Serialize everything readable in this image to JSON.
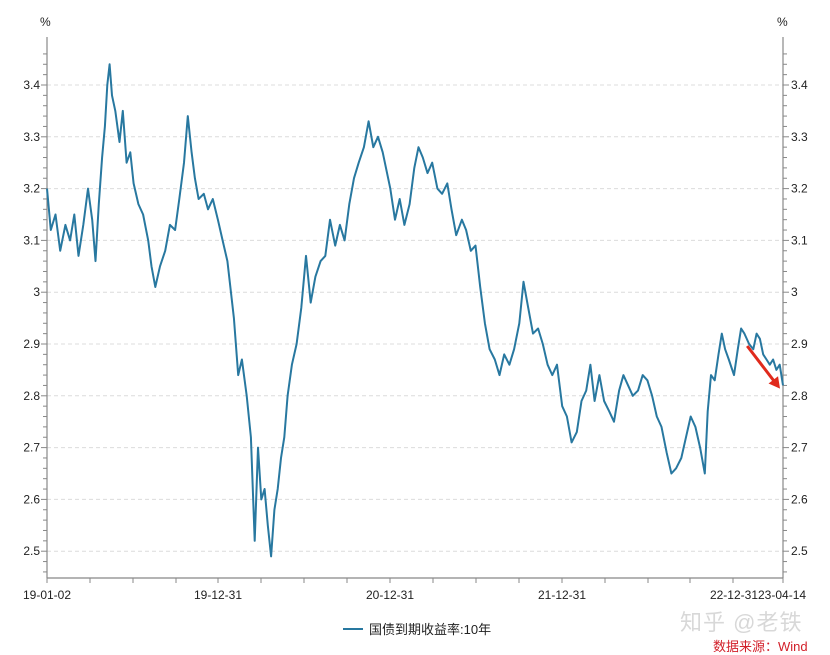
{
  "chart_data": {
    "type": "line",
    "title": "",
    "xlabel": "",
    "ylabel": "%",
    "ylabel_right": "%",
    "ylim": [
      2.45,
      3.48
    ],
    "yticks": [
      2.5,
      2.6,
      2.7,
      2.8,
      2.9,
      3,
      3.1,
      3.2,
      3.3,
      3.4
    ],
    "ytick_labels": [
      "2.5",
      "2.6",
      "2.7",
      "2.8",
      "2.9",
      "3",
      "3.1",
      "3.2",
      "3.3",
      "3.4"
    ],
    "xtick_labels": [
      "19-01-02",
      "19-12-31",
      "20-12-31",
      "21-12-31",
      "22-12-31",
      "23-04-14"
    ],
    "grid": true,
    "legend_position": "bottom-center",
    "series": [
      {
        "name": "国债到期收益率:10年",
        "color": "#2878a0",
        "points": [
          [
            "2019-01-02",
            3.2
          ],
          [
            "2019-01-10",
            3.12
          ],
          [
            "2019-01-20",
            3.15
          ],
          [
            "2019-01-30",
            3.08
          ],
          [
            "2019-02-10",
            3.13
          ],
          [
            "2019-02-20",
            3.1
          ],
          [
            "2019-03-01",
            3.15
          ],
          [
            "2019-03-10",
            3.07
          ],
          [
            "2019-03-20",
            3.13
          ],
          [
            "2019-03-30",
            3.2
          ],
          [
            "2019-04-08",
            3.14
          ],
          [
            "2019-04-15",
            3.06
          ],
          [
            "2019-04-22",
            3.17
          ],
          [
            "2019-04-29",
            3.26
          ],
          [
            "2019-05-05",
            3.32
          ],
          [
            "2019-05-10",
            3.4
          ],
          [
            "2019-05-15",
            3.44
          ],
          [
            "2019-05-20",
            3.38
          ],
          [
            "2019-05-27",
            3.35
          ],
          [
            "2019-06-05",
            3.29
          ],
          [
            "2019-06-12",
            3.35
          ],
          [
            "2019-06-20",
            3.25
          ],
          [
            "2019-06-28",
            3.27
          ],
          [
            "2019-07-05",
            3.21
          ],
          [
            "2019-07-15",
            3.17
          ],
          [
            "2019-07-25",
            3.15
          ],
          [
            "2019-08-05",
            3.1
          ],
          [
            "2019-08-12",
            3.05
          ],
          [
            "2019-08-20",
            3.01
          ],
          [
            "2019-08-30",
            3.05
          ],
          [
            "2019-09-10",
            3.08
          ],
          [
            "2019-09-20",
            3.13
          ],
          [
            "2019-10-01",
            3.12
          ],
          [
            "2019-10-10",
            3.18
          ],
          [
            "2019-10-20",
            3.25
          ],
          [
            "2019-10-28",
            3.34
          ],
          [
            "2019-11-05",
            3.27
          ],
          [
            "2019-11-12",
            3.22
          ],
          [
            "2019-11-20",
            3.18
          ],
          [
            "2019-12-01",
            3.19
          ],
          [
            "2019-12-10",
            3.16
          ],
          [
            "2019-12-20",
            3.18
          ],
          [
            "2019-12-31",
            3.14
          ],
          [
            "2020-01-10",
            3.1
          ],
          [
            "2020-01-20",
            3.06
          ],
          [
            "2020-02-03",
            2.95
          ],
          [
            "2020-02-12",
            2.84
          ],
          [
            "2020-02-20",
            2.87
          ],
          [
            "2020-03-01",
            2.8
          ],
          [
            "2020-03-10",
            2.72
          ],
          [
            "2020-03-18",
            2.52
          ],
          [
            "2020-03-25",
            2.7
          ],
          [
            "2020-04-01",
            2.6
          ],
          [
            "2020-04-08",
            2.62
          ],
          [
            "2020-04-15",
            2.55
          ],
          [
            "2020-04-22",
            2.49
          ],
          [
            "2020-04-29",
            2.58
          ],
          [
            "2020-05-06",
            2.62
          ],
          [
            "2020-05-13",
            2.68
          ],
          [
            "2020-05-20",
            2.72
          ],
          [
            "2020-05-27",
            2.8
          ],
          [
            "2020-06-05",
            2.86
          ],
          [
            "2020-06-15",
            2.9
          ],
          [
            "2020-06-25",
            2.97
          ],
          [
            "2020-07-05",
            3.07
          ],
          [
            "2020-07-15",
            2.98
          ],
          [
            "2020-07-25",
            3.03
          ],
          [
            "2020-08-05",
            3.06
          ],
          [
            "2020-08-15",
            3.07
          ],
          [
            "2020-08-25",
            3.14
          ],
          [
            "2020-09-05",
            3.09
          ],
          [
            "2020-09-15",
            3.13
          ],
          [
            "2020-09-25",
            3.1
          ],
          [
            "2020-10-05",
            3.17
          ],
          [
            "2020-10-15",
            3.22
          ],
          [
            "2020-10-25",
            3.25
          ],
          [
            "2020-11-05",
            3.28
          ],
          [
            "2020-11-15",
            3.33
          ],
          [
            "2020-11-25",
            3.28
          ],
          [
            "2020-12-05",
            3.3
          ],
          [
            "2020-12-15",
            3.27
          ],
          [
            "2020-12-31",
            3.2
          ],
          [
            "2021-01-10",
            3.14
          ],
          [
            "2021-01-20",
            3.18
          ],
          [
            "2021-01-30",
            3.13
          ],
          [
            "2021-02-10",
            3.17
          ],
          [
            "2021-02-20",
            3.24
          ],
          [
            "2021-03-01",
            3.28
          ],
          [
            "2021-03-10",
            3.26
          ],
          [
            "2021-03-20",
            3.23
          ],
          [
            "2021-03-30",
            3.25
          ],
          [
            "2021-04-10",
            3.2
          ],
          [
            "2021-04-20",
            3.19
          ],
          [
            "2021-05-01",
            3.21
          ],
          [
            "2021-05-10",
            3.16
          ],
          [
            "2021-05-20",
            3.11
          ],
          [
            "2021-06-01",
            3.14
          ],
          [
            "2021-06-10",
            3.12
          ],
          [
            "2021-06-20",
            3.08
          ],
          [
            "2021-06-30",
            3.09
          ],
          [
            "2021-07-10",
            3.01
          ],
          [
            "2021-07-20",
            2.94
          ],
          [
            "2021-07-30",
            2.89
          ],
          [
            "2021-08-10",
            2.87
          ],
          [
            "2021-08-20",
            2.84
          ],
          [
            "2021-08-30",
            2.88
          ],
          [
            "2021-09-10",
            2.86
          ],
          [
            "2021-09-20",
            2.89
          ],
          [
            "2021-10-01",
            2.94
          ],
          [
            "2021-10-10",
            3.02
          ],
          [
            "2021-10-20",
            2.97
          ],
          [
            "2021-10-30",
            2.92
          ],
          [
            "2021-11-10",
            2.93
          ],
          [
            "2021-11-20",
            2.9
          ],
          [
            "2021-11-30",
            2.86
          ],
          [
            "2021-12-10",
            2.84
          ],
          [
            "2021-12-20",
            2.86
          ],
          [
            "2021-12-31",
            2.78
          ],
          [
            "2022-01-10",
            2.76
          ],
          [
            "2022-01-20",
            2.71
          ],
          [
            "2022-01-31",
            2.73
          ],
          [
            "2022-02-10",
            2.79
          ],
          [
            "2022-02-20",
            2.81
          ],
          [
            "2022-03-01",
            2.86
          ],
          [
            "2022-03-10",
            2.79
          ],
          [
            "2022-03-20",
            2.84
          ],
          [
            "2022-03-30",
            2.79
          ],
          [
            "2022-04-10",
            2.77
          ],
          [
            "2022-04-20",
            2.75
          ],
          [
            "2022-05-01",
            2.81
          ],
          [
            "2022-05-10",
            2.84
          ],
          [
            "2022-05-20",
            2.82
          ],
          [
            "2022-05-30",
            2.8
          ],
          [
            "2022-06-10",
            2.81
          ],
          [
            "2022-06-20",
            2.84
          ],
          [
            "2022-06-30",
            2.83
          ],
          [
            "2022-07-10",
            2.8
          ],
          [
            "2022-07-20",
            2.76
          ],
          [
            "2022-07-30",
            2.74
          ],
          [
            "2022-08-10",
            2.69
          ],
          [
            "2022-08-20",
            2.65
          ],
          [
            "2022-08-30",
            2.66
          ],
          [
            "2022-09-10",
            2.68
          ],
          [
            "2022-09-20",
            2.72
          ],
          [
            "2022-09-30",
            2.76
          ],
          [
            "2022-10-10",
            2.74
          ],
          [
            "2022-10-20",
            2.7
          ],
          [
            "2022-10-30",
            2.65
          ],
          [
            "2022-11-05",
            2.77
          ],
          [
            "2022-11-12",
            2.84
          ],
          [
            "2022-11-20",
            2.83
          ],
          [
            "2022-11-28",
            2.88
          ],
          [
            "2022-12-05",
            2.92
          ],
          [
            "2022-12-12",
            2.89
          ],
          [
            "2022-12-20",
            2.87
          ],
          [
            "2022-12-31",
            2.84
          ],
          [
            "2023-01-08",
            2.89
          ],
          [
            "2023-01-15",
            2.93
          ],
          [
            "2023-01-22",
            2.92
          ],
          [
            "2023-02-01",
            2.9
          ],
          [
            "2023-02-10",
            2.89
          ],
          [
            "2023-02-17",
            2.92
          ],
          [
            "2023-02-24",
            2.91
          ],
          [
            "2023-03-03",
            2.88
          ],
          [
            "2023-03-10",
            2.87
          ],
          [
            "2023-03-17",
            2.86
          ],
          [
            "2023-03-24",
            2.87
          ],
          [
            "2023-03-31",
            2.85
          ],
          [
            "2023-04-07",
            2.86
          ],
          [
            "2023-04-14",
            2.82
          ]
        ]
      }
    ],
    "annotations": [
      {
        "type": "arrow",
        "color": "#e02a1c",
        "from": [
          "2023-01-28",
          2.9
        ],
        "to": [
          "2023-04-14",
          2.81
        ],
        "meaning": "downward trend"
      }
    ]
  },
  "legend": {
    "label": "国债到期收益率:10年",
    "color": "#2878a0"
  },
  "axis": {
    "left_unit": "%",
    "right_unit": "%"
  },
  "watermark": "知乎 @老铁",
  "source": "数据来源：Wind",
  "colors": {
    "line": "#2878a0",
    "arrow": "#e02a1c",
    "source_text": "#d2202a",
    "grid": "#dcdcdc",
    "axis": "#888888"
  }
}
